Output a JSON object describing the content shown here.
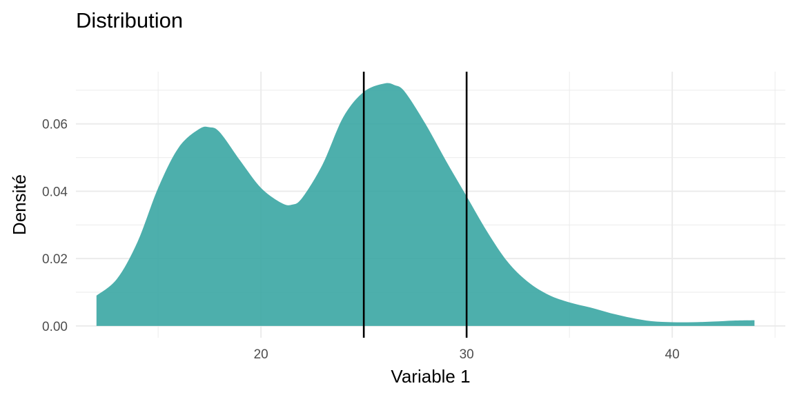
{
  "chart_data": {
    "type": "area",
    "title": "Distribution",
    "xlabel": "Variable 1",
    "ylabel": "Densité",
    "xlim": [
      11,
      45.5
    ],
    "ylim": [
      -0.0035,
      0.0755
    ],
    "x_ticks": [
      20,
      30,
      40
    ],
    "x_minor_ticks": [
      15,
      25,
      35,
      45
    ],
    "y_ticks": [
      0.0,
      0.02,
      0.04,
      0.06
    ],
    "y_tick_labels": [
      "0.00",
      "0.02",
      "0.04",
      "0.06"
    ],
    "y_minor_ticks": [
      0.01,
      0.03,
      0.05,
      0.07
    ],
    "grid": true,
    "fill_color": "#3aa6a3",
    "vertical_lines": [
      25,
      30
    ],
    "series": [
      {
        "x": [
          12,
          13,
          14,
          15,
          16,
          17,
          17.5,
          18,
          19,
          20,
          21,
          21.5,
          22,
          23,
          24,
          25,
          26,
          26.5,
          27,
          28,
          29,
          30,
          31,
          32,
          33,
          34,
          35,
          36,
          37,
          38,
          39,
          40,
          41,
          42,
          43,
          44
        ],
        "y": [
          0.009,
          0.014,
          0.025,
          0.041,
          0.053,
          0.0585,
          0.059,
          0.0575,
          0.049,
          0.041,
          0.0365,
          0.036,
          0.038,
          0.048,
          0.062,
          0.0695,
          0.072,
          0.0715,
          0.0695,
          0.06,
          0.049,
          0.0385,
          0.028,
          0.019,
          0.013,
          0.0092,
          0.007,
          0.0055,
          0.0038,
          0.0024,
          0.0014,
          0.0011,
          0.0011,
          0.0013,
          0.0016,
          0.0017
        ]
      }
    ]
  }
}
